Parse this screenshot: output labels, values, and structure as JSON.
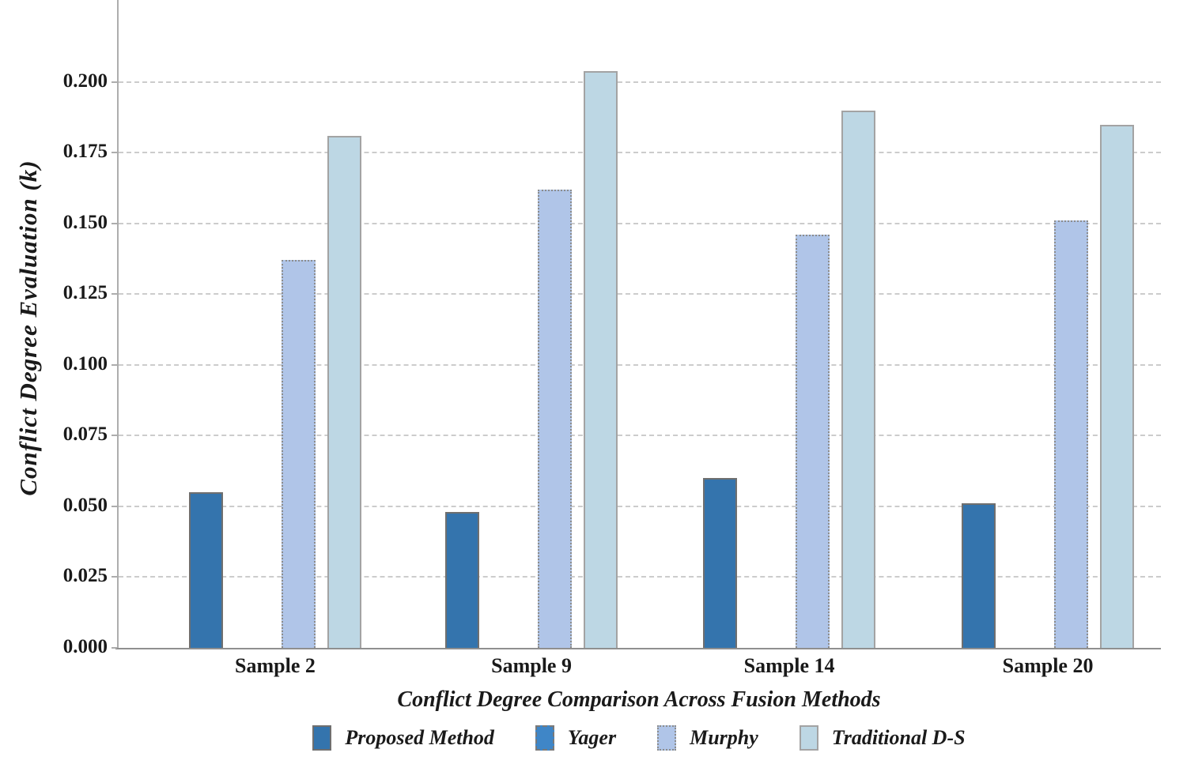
{
  "chart_data": {
    "type": "bar",
    "title": "",
    "xlabel": "Conflict Degree Comparison Across Fusion Methods",
    "ylabel": "Conflict Degree Evaluation (k)",
    "categories": [
      "Sample 2",
      "Sample 9",
      "Sample 14",
      "Sample 20"
    ],
    "series": [
      {
        "name": "Proposed Method",
        "values": [
          0.055,
          0.048,
          0.06,
          0.051
        ],
        "color": "#3474ad",
        "border_style": "solid",
        "border_color": "#6f6f6f"
      },
      {
        "name": "Yager",
        "values": [
          0.0,
          0.0,
          0.0,
          0.0
        ],
        "color": "#3f86c7",
        "border_style": "dashed",
        "border_color": "#7a7a7a"
      },
      {
        "name": "Murphy",
        "values": [
          0.137,
          0.162,
          0.146,
          0.151
        ],
        "color": "#b0c5e8",
        "border_style": "dotted",
        "border_color": "#8c8c8c"
      },
      {
        "name": "Traditional D-S",
        "values": [
          0.181,
          0.204,
          0.19,
          0.185
        ],
        "color": "#bdd7e4",
        "border_style": "solid",
        "border_color": "#a3a3a3"
      }
    ],
    "y_ticks": [
      "0.000",
      "0.025",
      "0.050",
      "0.075",
      "0.100",
      "0.125",
      "0.150",
      "0.175",
      "0.200"
    ],
    "ylim": [
      0,
      0.229
    ],
    "grid": "horizontal-dashed",
    "legend_position": "bottom"
  }
}
